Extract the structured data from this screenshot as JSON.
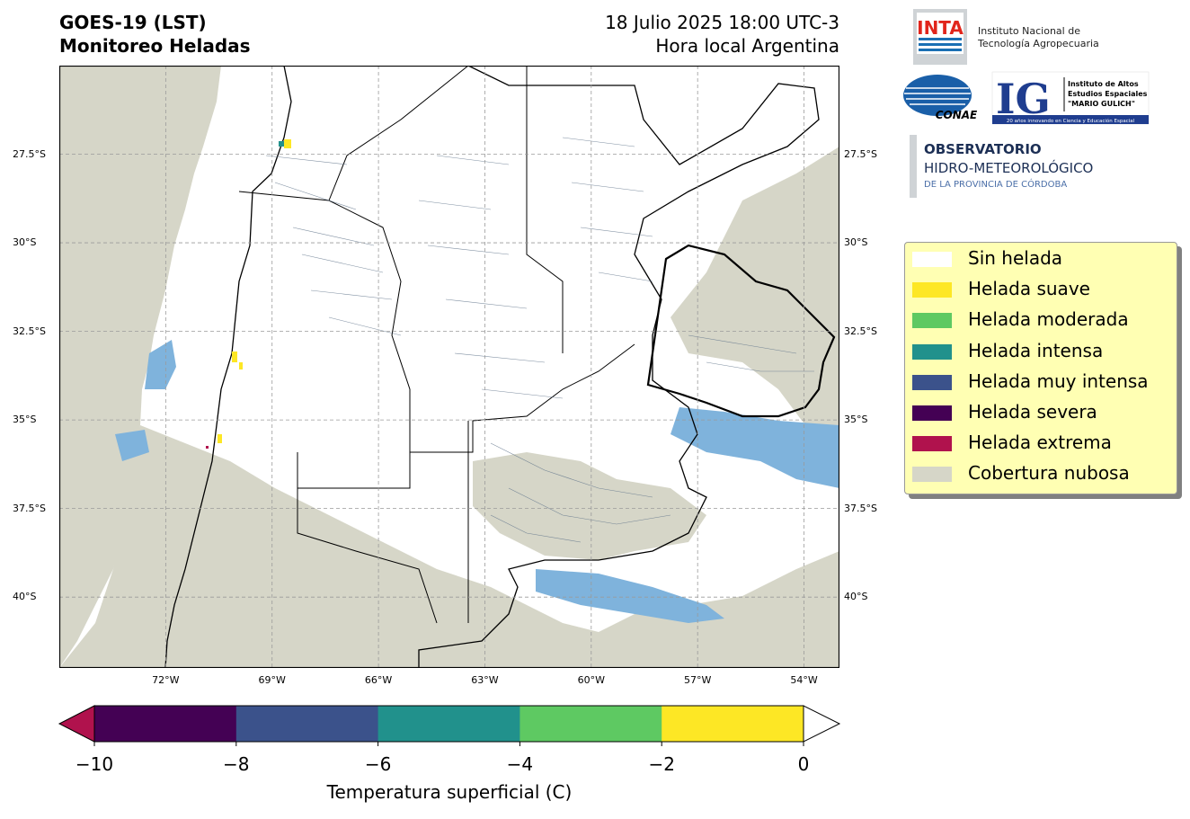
{
  "header": {
    "title_line1": "GOES-19 (LST)",
    "title_line2": "Monitoreo Heladas",
    "date_line": "18 Julio 2025 18:00 UTC-3",
    "time_note": "Hora local Argentina"
  },
  "map": {
    "projection": "PlateCarree",
    "lon_range": [
      -75,
      -53
    ],
    "lat_range": [
      -42,
      -25
    ],
    "lat_ticks": [
      "27.5°S",
      "30°S",
      "32.5°S",
      "35°S",
      "37.5°S",
      "40°S"
    ],
    "lon_ticks": [
      "72°W",
      "69°W",
      "66°W",
      "63°W",
      "60°W",
      "57°W",
      "54°W"
    ],
    "grid": true,
    "highlighted_province": "Entre Ríos",
    "colors": {
      "land_no_frost": "#ffffff",
      "cloud": "#d6d6c8",
      "water_cloud_blue": "#7fb3dc",
      "border": "#000000",
      "department_lines": "#5f7389"
    }
  },
  "legend": {
    "items": [
      {
        "label": "Sin helada",
        "color": "#ffffff"
      },
      {
        "label": "Helada suave",
        "color": "#fde725"
      },
      {
        "label": "Helada moderada",
        "color": "#5ec962"
      },
      {
        "label": "Helada intensa",
        "color": "#21918c"
      },
      {
        "label": "Helada muy intensa",
        "color": "#3b528b"
      },
      {
        "label": "Helada severa",
        "color": "#440154"
      },
      {
        "label": "Helada extrema",
        "color": "#b0124d"
      },
      {
        "label": "Cobertura nubosa",
        "color": "#d6d6c8"
      }
    ]
  },
  "colorbar": {
    "ticks": [
      "−10",
      "−8",
      "−6",
      "−4",
      "−2",
      "0"
    ],
    "label": "Temperatura superficial (C)",
    "under_color": "#b0124d",
    "over_color": "#ffffff",
    "segments": [
      "#440154",
      "#3b528b",
      "#21918c",
      "#5ec962",
      "#fde725"
    ]
  },
  "logos": {
    "inta_mark": "INTA",
    "inta_name_line1": "Instituto Nacional de",
    "inta_name_line2": "Tecnología Agropecuaria",
    "conae_mark": "CONAE",
    "ig_mark": "IG",
    "ig_line1": "Instituto de Altos",
    "ig_line2": "Estudios Espaciales",
    "ig_line3": "\"MARIO GULICH\"",
    "ig_tagline": "20 años innovando en Ciencia y Educación Espacial",
    "obs_line1": "OBSERVATORIO",
    "obs_line2": "HIDRO-METEOROLÓGICO",
    "obs_line3": "DE LA PROVINCIA DE CÓRDOBA"
  }
}
